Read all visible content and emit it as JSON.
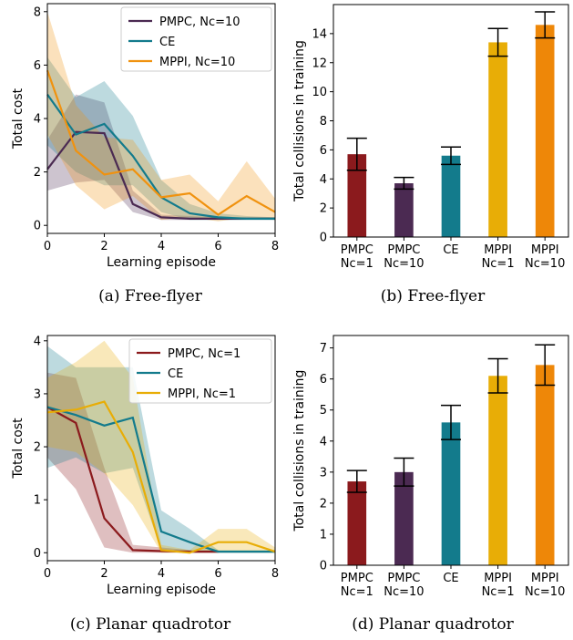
{
  "chart_data": [
    {
      "type": "line",
      "caption": "(a) Free-flyer",
      "xlabel": "Learning episode",
      "ylabel": "Total cost",
      "xlim": [
        0,
        8
      ],
      "ylim": [
        -0.3,
        8.3
      ],
      "xticks": [
        0,
        2,
        4,
        6,
        8
      ],
      "yticks": [
        0,
        2,
        4,
        6,
        8
      ],
      "legend_position": "top-right",
      "series": [
        {
          "name": "PMPC, Nc=10",
          "color": "#4b2a52",
          "x": [
            0,
            1,
            2,
            3,
            4,
            5,
            6,
            7,
            8
          ],
          "y": [
            2.1,
            3.5,
            3.45,
            0.8,
            0.3,
            0.25,
            0.25,
            0.25,
            0.25
          ],
          "lower": [
            1.3,
            1.6,
            1.7,
            0.5,
            0.2,
            0.2,
            0.2,
            0.2,
            0.2
          ],
          "upper": [
            3.2,
            4.9,
            4.6,
            1.3,
            0.4,
            0.35,
            0.3,
            0.3,
            0.3
          ]
        },
        {
          "name": "CE",
          "color": "#137b8c",
          "x": [
            0,
            1,
            2,
            3,
            4,
            5,
            6,
            7,
            8
          ],
          "y": [
            4.9,
            3.4,
            3.8,
            2.6,
            1.05,
            0.45,
            0.3,
            0.25,
            0.25
          ],
          "lower": [
            3.0,
            2.0,
            1.5,
            1.5,
            0.5,
            0.2,
            0.2,
            0.2,
            0.2
          ],
          "upper": [
            6.3,
            4.8,
            5.4,
            4.1,
            1.7,
            0.8,
            0.45,
            0.35,
            0.3
          ]
        },
        {
          "name": "MPPI, Nc=10",
          "color": "#f0920f",
          "x": [
            0,
            1,
            2,
            3,
            4,
            5,
            6,
            7,
            8
          ],
          "y": [
            5.8,
            2.8,
            1.9,
            2.1,
            1.05,
            1.2,
            0.4,
            1.1,
            0.5
          ],
          "lower": [
            3.4,
            1.5,
            0.6,
            1.1,
            0.2,
            0.3,
            0.15,
            0.3,
            0.2
          ],
          "upper": [
            8.0,
            4.5,
            3.3,
            3.2,
            1.7,
            1.9,
            0.9,
            2.4,
            1.0
          ]
        }
      ]
    },
    {
      "type": "bar",
      "caption": "(b) Free-flyer",
      "ylabel": "Total collisions in training",
      "ylim": [
        0,
        16
      ],
      "yticks": [
        0,
        2,
        4,
        6,
        8,
        10,
        12,
        14
      ],
      "categories": [
        [
          "PMPC",
          "Nc=1"
        ],
        [
          "PMPC",
          "Nc=10"
        ],
        [
          "CE"
        ],
        [
          "MPPI",
          "Nc=1"
        ],
        [
          "MPPI",
          "Nc=10"
        ]
      ],
      "values": [
        5.7,
        3.7,
        5.6,
        13.4,
        14.6
      ],
      "errors": [
        1.1,
        0.4,
        0.6,
        0.95,
        0.9
      ],
      "colors": [
        "#8b1a1d",
        "#4b2a52",
        "#137b8c",
        "#e8ad06",
        "#ee8708"
      ]
    },
    {
      "type": "line",
      "caption": "(c) Planar quadrotor",
      "xlabel": "Learning episode",
      "ylabel": "Total cost",
      "xlim": [
        0,
        8
      ],
      "ylim": [
        -0.15,
        4.1
      ],
      "xticks": [
        0,
        2,
        4,
        6,
        8
      ],
      "yticks": [
        0,
        1,
        2,
        3,
        4
      ],
      "legend_position": "top-right",
      "series": [
        {
          "name": "PMPC, Nc=1",
          "color": "#8b1a1d",
          "x": [
            0,
            1,
            2,
            3,
            4,
            5,
            6
          ],
          "y": [
            2.75,
            2.45,
            0.65,
            0.05,
            0.03,
            0.02,
            0.02
          ],
          "lower": [
            1.8,
            1.2,
            0.1,
            0.0,
            0.0,
            0.0,
            0.0
          ],
          "upper": [
            3.4,
            3.3,
            1.6,
            0.15,
            0.1,
            0.05,
            0.05
          ]
        },
        {
          "name": "CE",
          "color": "#137b8c",
          "x": [
            0,
            1,
            2,
            3,
            4,
            5,
            6,
            7,
            8
          ],
          "y": [
            2.75,
            2.6,
            2.4,
            2.55,
            0.4,
            0.2,
            0.02,
            0.02,
            0.02
          ],
          "lower": [
            1.6,
            1.8,
            1.5,
            1.6,
            0.05,
            0.0,
            0.0,
            0.0,
            0.0
          ],
          "upper": [
            3.9,
            3.5,
            3.5,
            3.5,
            0.8,
            0.45,
            0.05,
            0.05,
            0.05
          ]
        },
        {
          "name": "MPPI, Nc=1",
          "color": "#e8ad06",
          "x": [
            0,
            1,
            2,
            3,
            4,
            5,
            6,
            7,
            8
          ],
          "y": [
            2.65,
            2.7,
            2.85,
            1.9,
            0.05,
            0.0,
            0.2,
            0.2,
            0.02
          ],
          "lower": [
            2.0,
            1.9,
            1.5,
            0.9,
            0.0,
            0.0,
            0.0,
            0.0,
            0.0
          ],
          "upper": [
            3.3,
            3.6,
            4.0,
            3.3,
            0.15,
            0.05,
            0.45,
            0.45,
            0.1
          ]
        }
      ]
    },
    {
      "type": "bar",
      "caption": "(d) Planar quadrotor",
      "ylabel": "Total collisions in training",
      "ylim": [
        0,
        7.4
      ],
      "yticks": [
        0,
        1,
        2,
        3,
        4,
        5,
        6,
        7
      ],
      "categories": [
        [
          "PMPC",
          "Nc=1"
        ],
        [
          "PMPC",
          "Nc=10"
        ],
        [
          "CE"
        ],
        [
          "MPPI",
          "Nc=1"
        ],
        [
          "MPPI",
          "Nc=10"
        ]
      ],
      "values": [
        2.7,
        3.0,
        4.6,
        6.1,
        6.45
      ],
      "errors": [
        0.35,
        0.45,
        0.55,
        0.55,
        0.65
      ],
      "colors": [
        "#8b1a1d",
        "#4b2a52",
        "#137b8c",
        "#e8ad06",
        "#ee8708"
      ]
    }
  ]
}
